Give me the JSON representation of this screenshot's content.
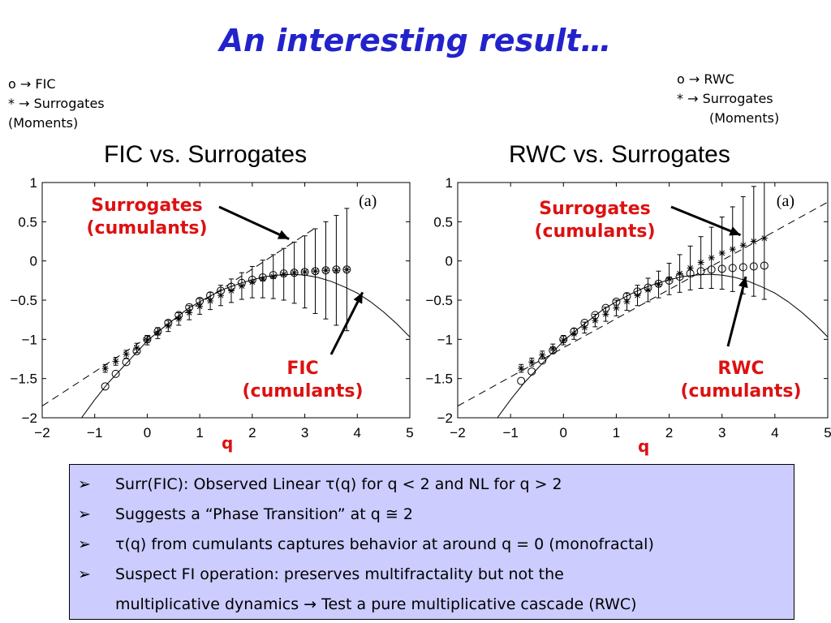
{
  "slide": {
    "title": "An interesting result…"
  },
  "legend_left": {
    "line1_symbol": "o",
    "line1_arrow": "→",
    "line1_label": "FIC",
    "line2_symbol": "*",
    "line2_arrow": "→",
    "line2_label": "Surrogates",
    "line3_label": "(Moments)"
  },
  "legend_right": {
    "line1_symbol": "o",
    "line1_arrow": "→",
    "line1_label": "RWC",
    "line2_symbol": "*",
    "line2_arrow": "→",
    "line2_label": "Surrogates",
    "line3_label": "(Moments)"
  },
  "annotations": {
    "left_surrogates": [
      "Surrogates",
      "(cumulants)"
    ],
    "left_fic": [
      "FIC",
      "(cumulants)"
    ],
    "right_surrogates": [
      "Surrogates",
      "(cumulants)"
    ],
    "right_rwc": [
      "RWC",
      "(cumulants)"
    ],
    "q_label": "q"
  },
  "chart_data": [
    {
      "type": "scatter",
      "title": "FIC vs. Surrogates",
      "panel_label": "(a)",
      "xlabel": "q",
      "ylabel": "",
      "xlim": [
        -2,
        5
      ],
      "ylim": [
        -2,
        1
      ],
      "xticks": [
        "−2",
        "−1",
        "0",
        "1",
        "2",
        "3",
        "4",
        "5"
      ],
      "yticks": [
        "1",
        "0.5",
        "0",
        "−0.5",
        "−1",
        "−1.5",
        "−2"
      ],
      "dashed_line": {
        "x": [
          -2,
          3.2
        ],
        "y": [
          -1.85,
          0.42
        ]
      },
      "solid_curve": {
        "x": [
          -1.25,
          -1,
          -0.75,
          -0.5,
          -0.25,
          0,
          0.25,
          0.5,
          0.75,
          1,
          1.25,
          1.5,
          1.75,
          2,
          2.25,
          2.5,
          2.75,
          3,
          3.25,
          3.5,
          3.75,
          4,
          4.25,
          4.5,
          4.75,
          5
        ],
        "y": [
          -2.0,
          -1.77,
          -1.56,
          -1.38,
          -1.2,
          -1.02,
          -0.88,
          -0.75,
          -0.62,
          -0.52,
          -0.43,
          -0.35,
          -0.29,
          -0.24,
          -0.2,
          -0.18,
          -0.17,
          -0.18,
          -0.21,
          -0.26,
          -0.33,
          -0.41,
          -0.52,
          -0.65,
          -0.8,
          -0.97
        ]
      },
      "series": [
        {
          "name": "FIC",
          "marker": "o",
          "x": [
            -0.8,
            -0.6,
            -0.4,
            -0.2,
            0,
            0.2,
            0.4,
            0.6,
            0.8,
            1,
            1.2,
            1.4,
            1.6,
            1.8,
            2,
            2.2,
            2.4,
            2.6,
            2.8,
            3,
            3.2,
            3.4,
            3.6,
            3.8
          ],
          "y": [
            -1.6,
            -1.44,
            -1.29,
            -1.15,
            -1.0,
            -0.9,
            -0.79,
            -0.69,
            -0.59,
            -0.51,
            -0.44,
            -0.38,
            -0.33,
            -0.28,
            -0.24,
            -0.21,
            -0.18,
            -0.16,
            -0.15,
            -0.14,
            -0.13,
            -0.12,
            -0.11,
            -0.11
          ]
        },
        {
          "name": "Surrogates",
          "marker": "*",
          "x": [
            -0.8,
            -0.6,
            -0.4,
            -0.2,
            0,
            0.2,
            0.4,
            0.6,
            0.8,
            1,
            1.2,
            1.4,
            1.6,
            1.8,
            2,
            2.2,
            2.4,
            2.6,
            2.8,
            3,
            3.2,
            3.4,
            3.6,
            3.8
          ],
          "y": [
            -1.37,
            -1.28,
            -1.19,
            -1.11,
            -1.01,
            -0.92,
            -0.83,
            -0.74,
            -0.66,
            -0.58,
            -0.51,
            -0.44,
            -0.38,
            -0.32,
            -0.27,
            -0.23,
            -0.2,
            -0.17,
            -0.15,
            -0.14,
            -0.13,
            -0.12,
            -0.12,
            -0.11
          ],
          "err": [
            0.05,
            0.05,
            0.05,
            0.06,
            0.06,
            0.07,
            0.07,
            0.08,
            0.09,
            0.1,
            0.11,
            0.13,
            0.15,
            0.17,
            0.2,
            0.24,
            0.28,
            0.33,
            0.39,
            0.46,
            0.54,
            0.62,
            0.7,
            0.78
          ]
        }
      ]
    },
    {
      "type": "scatter",
      "title": "RWC vs. Surrogates",
      "panel_label": "(a)",
      "xlabel": "q",
      "ylabel": "",
      "xlim": [
        -2,
        5
      ],
      "ylim": [
        -2,
        1
      ],
      "xticks": [
        "−2",
        "−1",
        "0",
        "1",
        "2",
        "3",
        "4",
        "5"
      ],
      "yticks": [
        "1",
        "0.5",
        "0",
        "−0.5",
        "−1",
        "−1.5",
        "−2"
      ],
      "dashed_line": {
        "x": [
          -2,
          5
        ],
        "y": [
          -1.85,
          0.75
        ]
      },
      "solid_curve": {
        "x": [
          -1.25,
          -1,
          -0.75,
          -0.5,
          -0.25,
          0,
          0.25,
          0.5,
          0.75,
          1,
          1.25,
          1.5,
          1.75,
          2,
          2.25,
          2.5,
          2.75,
          3,
          3.25,
          3.5,
          3.75,
          4,
          4.25,
          4.5,
          4.75,
          5
        ],
        "y": [
          -2.0,
          -1.77,
          -1.56,
          -1.38,
          -1.2,
          -1.02,
          -0.88,
          -0.75,
          -0.62,
          -0.52,
          -0.43,
          -0.35,
          -0.29,
          -0.24,
          -0.2,
          -0.18,
          -0.17,
          -0.18,
          -0.21,
          -0.26,
          -0.33,
          -0.41,
          -0.52,
          -0.65,
          -0.8,
          -0.97
        ]
      },
      "series": [
        {
          "name": "RWC",
          "marker": "o",
          "x": [
            -0.8,
            -0.6,
            -0.4,
            -0.2,
            0,
            0.2,
            0.4,
            0.6,
            0.8,
            1,
            1.2,
            1.4,
            1.6,
            1.8,
            2,
            2.2,
            2.4,
            2.6,
            2.8,
            3,
            3.2,
            3.4,
            3.6,
            3.8
          ],
          "y": [
            -1.53,
            -1.41,
            -1.27,
            -1.14,
            -1.0,
            -0.9,
            -0.79,
            -0.69,
            -0.6,
            -0.52,
            -0.45,
            -0.39,
            -0.34,
            -0.29,
            -0.25,
            -0.2,
            -0.16,
            -0.13,
            -0.11,
            -0.1,
            -0.09,
            -0.08,
            -0.07,
            -0.06
          ]
        },
        {
          "name": "Surrogates",
          "marker": "*",
          "x": [
            -0.8,
            -0.6,
            -0.4,
            -0.2,
            0,
            0.2,
            0.4,
            0.6,
            0.8,
            1,
            1.2,
            1.4,
            1.6,
            1.8,
            2,
            2.2,
            2.4,
            2.6,
            2.8,
            3,
            3.2,
            3.4,
            3.6,
            3.8
          ],
          "y": [
            -1.37,
            -1.29,
            -1.2,
            -1.12,
            -1.01,
            -0.93,
            -0.85,
            -0.76,
            -0.68,
            -0.6,
            -0.52,
            -0.44,
            -0.37,
            -0.3,
            -0.23,
            -0.16,
            -0.09,
            -0.02,
            0.04,
            0.1,
            0.15,
            0.2,
            0.25,
            0.29
          ],
          "err": [
            0.05,
            0.05,
            0.05,
            0.06,
            0.06,
            0.07,
            0.07,
            0.08,
            0.09,
            0.1,
            0.11,
            0.13,
            0.15,
            0.17,
            0.2,
            0.24,
            0.28,
            0.33,
            0.39,
            0.46,
            0.54,
            0.62,
            0.7,
            0.78
          ]
        }
      ]
    }
  ],
  "bullets": {
    "marker": "➢",
    "items": [
      "Surr(FIC): Observed Linear τ(q) for q < 2 and NL for q > 2",
      "Suggests a “Phase Transition” at q ≅ 2",
      "τ(q) from cumulants captures behavior at around q = 0 (monofractal)",
      "Suspect FI operation: preserves multifractality but not the"
    ],
    "continuation": "multiplicative dynamics  → Test a pure multiplicative cascade (RWC)"
  },
  "colors": {
    "title": "#2323cc",
    "annotation": "#dd1111",
    "bullet_box": "#ccccff"
  }
}
